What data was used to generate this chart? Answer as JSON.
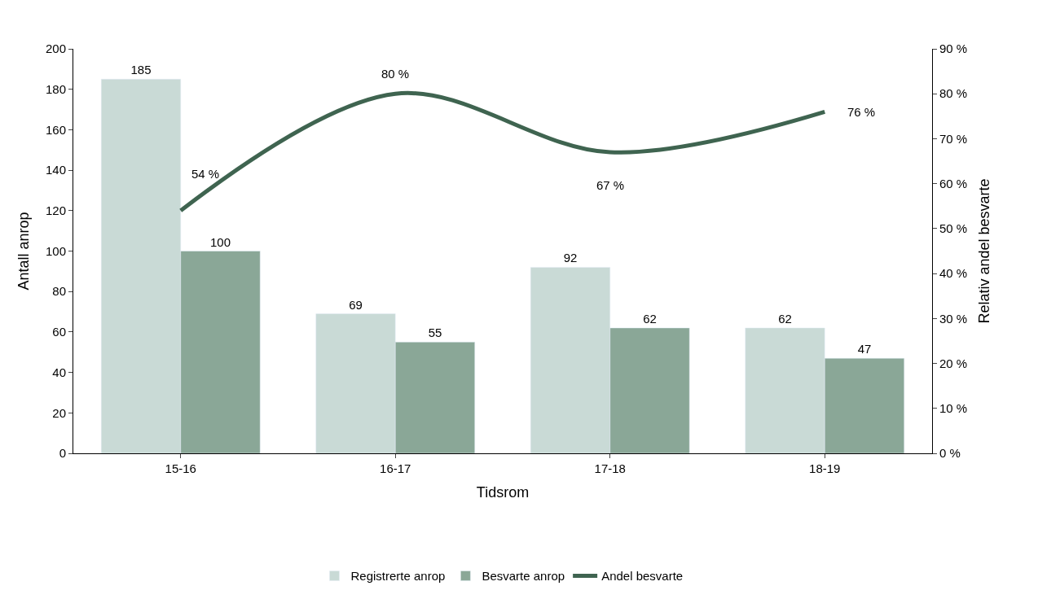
{
  "chart_data": {
    "type": "bar",
    "xlabel": "Tidsrom",
    "ylabel": "Antall anrop",
    "y2label": "Relativ andel besvarte",
    "categories": [
      "15-16",
      "16-17",
      "17-18",
      "18-19"
    ],
    "series": [
      {
        "name": "Registrerte anrop",
        "color": "#c9dad6",
        "values": [
          185,
          69,
          92,
          62
        ]
      },
      {
        "name": "Besvarte anrop",
        "color": "#8aa797",
        "values": [
          100,
          55,
          62,
          47
        ]
      },
      {
        "name": "Andel besvarte",
        "type": "line",
        "axis": "y2",
        "color": "#3f6450",
        "values": [
          54,
          80,
          67,
          76
        ],
        "value_labels": [
          "54 %",
          "80 %",
          "67 %",
          "76 %"
        ]
      }
    ],
    "ylim": [
      0,
      200
    ],
    "yticks": [
      0,
      20,
      40,
      60,
      80,
      100,
      120,
      140,
      160,
      180,
      200
    ],
    "y2lim": [
      0,
      90
    ],
    "y2ticks": [
      {
        "value": 0,
        "label": "0 %"
      },
      {
        "value": 10,
        "label": "10 %"
      },
      {
        "value": 20,
        "label": "20 %"
      },
      {
        "value": 30,
        "label": "30 %"
      },
      {
        "value": 40,
        "label": "40 %"
      },
      {
        "value": 50,
        "label": "50 %"
      },
      {
        "value": 60,
        "label": "60 %"
      },
      {
        "value": 70,
        "label": "70 %"
      },
      {
        "value": 80,
        "label": "80 %"
      },
      {
        "value": 90,
        "label": "90 %"
      }
    ],
    "data_labels": true,
    "legend": "bottom",
    "marker": "none",
    "line_style": "solid"
  }
}
